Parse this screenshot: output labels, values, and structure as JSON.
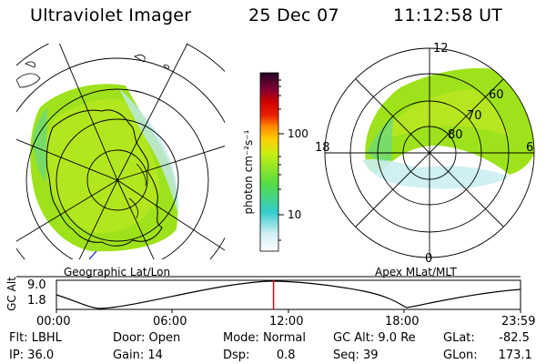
{
  "header": {
    "instrument": "Ultraviolet Imager",
    "date": "25 Dec 07",
    "time": "11:12:58 UT"
  },
  "left_panel": {
    "caption": "Geographic Lat/Lon"
  },
  "right_panel": {
    "caption": "Apex MLat/MLT",
    "mlt_labels": [
      "12",
      "18",
      "6",
      "0"
    ],
    "mlat_labels": [
      "60",
      "70",
      "80"
    ]
  },
  "colorbar": {
    "label": "photon cm⁻²s⁻¹",
    "ticks": [
      "100",
      "10"
    ]
  },
  "timeline": {
    "ylabel": "GC Alt",
    "y_ticks": [
      "9.0",
      "1.8"
    ],
    "x_ticks": [
      "00:00",
      "06:00",
      "12:00",
      "18:00",
      "23:59"
    ],
    "current_time_hours": 11.22
  },
  "params": {
    "filter": "Flt: LBHL",
    "door": "Door: Open",
    "mode_label": "Mode:",
    "mode_value": "Normal",
    "gc_alt": "GC Alt: 9.0 Re",
    "glat_label": "GLat:",
    "glat_value": "-82.5",
    "ip": "IP: 36.0",
    "gain": "Gain: 14",
    "dsp_label": "Dsp:",
    "dsp_value": "0.8",
    "seq": "Seq: 39",
    "glon_label": "GLon:",
    "glon_value": "173.1"
  }
}
